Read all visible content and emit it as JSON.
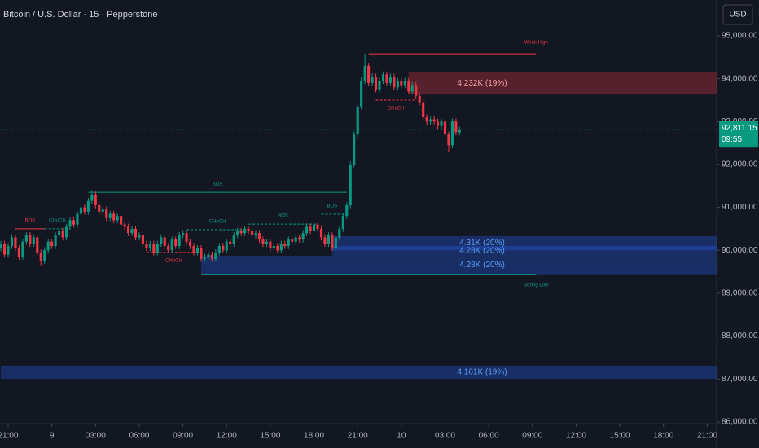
{
  "chart_data": {
    "type": "candlestick",
    "title": "Bitcoin / U.S. Dollar · 15 · Pepperstone",
    "currency": "USD",
    "up_color": "#089981",
    "down_color": "#f23645",
    "x": [
      -2,
      -1,
      0,
      1,
      2,
      3,
      4,
      5,
      6,
      7,
      8,
      9,
      10,
      11,
      12,
      13,
      14,
      15,
      16,
      17,
      18,
      19,
      20,
      21,
      22,
      23,
      24,
      25,
      26,
      27,
      28,
      29,
      30,
      31,
      32,
      33,
      34,
      35,
      36,
      37,
      38,
      39,
      40,
      41,
      42,
      43,
      44,
      45,
      46,
      47,
      48,
      49,
      50,
      51,
      52,
      53,
      54,
      55,
      56,
      57,
      58,
      59,
      60,
      61,
      62,
      63,
      64,
      65,
      66,
      67,
      68,
      69,
      70,
      71,
      72,
      73,
      74,
      75,
      76,
      77,
      78,
      79,
      80,
      81,
      82,
      83,
      84,
      85,
      86,
      87,
      88,
      89,
      90,
      91,
      92,
      93,
      94,
      95,
      96,
      97,
      98,
      99,
      100,
      101,
      102,
      103,
      104,
      105,
      106,
      107,
      108,
      109,
      110,
      111,
      112,
      113,
      114,
      115,
      116,
      117,
      118,
      119,
      120,
      121,
      122,
      123,
      124
    ],
    "open": [
      90050,
      90150,
      89900,
      90100,
      90300,
      90050,
      89850,
      90200,
      90350,
      90150,
      90300,
      89950,
      89750,
      90000,
      90200,
      90100,
      90350,
      90450,
      90300,
      90550,
      90700,
      90600,
      90850,
      91000,
      90900,
      91150,
      91300,
      91050,
      90900,
      90950,
      90750,
      90850,
      90700,
      90800,
      90600,
      90550,
      90400,
      90500,
      90300,
      90350,
      90150,
      90050,
      90150,
      89950,
      90150,
      90300,
      90100,
      90000,
      90250,
      90100,
      90350,
      90400,
      90200,
      90100,
      89950,
      90050,
      89800,
      89850,
      89900,
      89800,
      89950,
      90100,
      90000,
      90200,
      90150,
      90350,
      90450,
      90400,
      90500,
      90450,
      90350,
      90400,
      90250,
      90150,
      90200,
      90050,
      90100,
      90000,
      90150,
      90100,
      90250,
      90200,
      90300,
      90250,
      90400,
      90550,
      90450,
      90600,
      90500,
      90300,
      90150,
      90350,
      90050,
      90300,
      90500,
      90800,
      91050,
      92000,
      92700,
      93350,
      93950,
      94300,
      93900,
      94050,
      93750,
      93950,
      94100,
      93900,
      94050,
      93800,
      93950,
      93850,
      93950,
      93700,
      93850,
      93600,
      93450,
      93100,
      93000,
      93050,
      93000,
      92900,
      93000,
      92700,
      92450,
      93000,
      92750
    ],
    "high": [
      90220,
      90220,
      90170,
      90370,
      90370,
      90120,
      90270,
      90420,
      90420,
      90370,
      90370,
      90020,
      90070,
      90270,
      90270,
      90420,
      90520,
      90520,
      90620,
      90770,
      90770,
      90920,
      91070,
      91070,
      91220,
      91400,
      91370,
      91120,
      91020,
      91020,
      90920,
      90920,
      90870,
      90870,
      90670,
      90620,
      90570,
      90570,
      90420,
      90420,
      90220,
      90220,
      90220,
      90220,
      90370,
      90370,
      90170,
      90320,
      90320,
      90420,
      90470,
      90470,
      90270,
      90170,
      90120,
      90120,
      89920,
      89970,
      89970,
      90020,
      90170,
      90170,
      90270,
      90270,
      90420,
      90520,
      90520,
      90570,
      90570,
      90520,
      90470,
      90470,
      90320,
      90270,
      90270,
      90170,
      90170,
      90220,
      90220,
      90320,
      90320,
      90370,
      90370,
      90470,
      90620,
      90620,
      90670,
      90670,
      90570,
      90370,
      90420,
      90420,
      90370,
      90570,
      90870,
      91120,
      92070,
      92770,
      93420,
      94050,
      94580,
      94370,
      94120,
      94120,
      94020,
      94170,
      94170,
      94120,
      94120,
      94020,
      94020,
      94020,
      94020,
      93920,
      93920,
      93670,
      93520,
      93170,
      93120,
      93120,
      93070,
      93070,
      93070,
      92770,
      93070,
      93070,
      92880
    ],
    "low": [
      89980,
      89830,
      89830,
      90030,
      89980,
      89780,
      89780,
      90130,
      90080,
      90080,
      89880,
      89650,
      89680,
      89930,
      90030,
      90030,
      90280,
      90230,
      90230,
      90480,
      90530,
      90530,
      90780,
      90830,
      90830,
      91080,
      90980,
      90830,
      90830,
      90680,
      90680,
      90630,
      90630,
      90530,
      90480,
      90330,
      90330,
      90230,
      90230,
      90080,
      89980,
      89980,
      89880,
      89880,
      90080,
      90030,
      89930,
      89930,
      90030,
      90030,
      90280,
      90130,
      90030,
      89880,
      89880,
      89730,
      89730,
      89780,
      89730,
      89730,
      89880,
      89930,
      89930,
      90080,
      90080,
      90280,
      90330,
      90330,
      90380,
      90280,
      90280,
      90180,
      90080,
      90080,
      89980,
      89980,
      89930,
      89930,
      90030,
      90030,
      90130,
      90130,
      90180,
      90180,
      90330,
      90380,
      90380,
      90430,
      90230,
      90080,
      90080,
      89980,
      89980,
      90230,
      90430,
      90730,
      90980,
      91930,
      92630,
      93280,
      93880,
      93830,
      93830,
      93680,
      93680,
      93880,
      93830,
      93830,
      93730,
      93730,
      93780,
      93780,
      93630,
      93630,
      93530,
      93380,
      93030,
      92930,
      92930,
      92930,
      92830,
      92830,
      92630,
      92300,
      92380,
      92680,
      92680
    ],
    "close": [
      90150,
      89900,
      90100,
      90300,
      90050,
      89850,
      90200,
      90350,
      90150,
      90300,
      89950,
      89750,
      90000,
      90200,
      90100,
      90350,
      90450,
      90300,
      90550,
      90700,
      90600,
      90850,
      91000,
      90900,
      91150,
      91300,
      91050,
      90900,
      90950,
      90750,
      90850,
      90700,
      90800,
      90600,
      90550,
      90400,
      90500,
      90300,
      90350,
      90150,
      90050,
      90150,
      89950,
      90150,
      90300,
      90100,
      90000,
      90250,
      90100,
      90350,
      90400,
      90200,
      90100,
      89950,
      90050,
      89800,
      89850,
      89900,
      89800,
      89950,
      90100,
      90000,
      90200,
      90150,
      90350,
      90450,
      90400,
      90500,
      90450,
      90350,
      90400,
      90250,
      90150,
      90200,
      90050,
      90100,
      90000,
      90150,
      90100,
      90250,
      90200,
      90300,
      90250,
      90400,
      90550,
      90450,
      90600,
      90500,
      90300,
      90150,
      90350,
      90050,
      90300,
      90500,
      90800,
      91050,
      92000,
      92700,
      93350,
      93950,
      94300,
      93900,
      94050,
      93750,
      93950,
      94100,
      93900,
      94050,
      93800,
      93950,
      93850,
      93950,
      93700,
      93850,
      93600,
      93450,
      93100,
      93000,
      93050,
      93000,
      92900,
      93000,
      92700,
      92450,
      93000,
      92750,
      92811.15
    ],
    "xlim": [
      -2.24,
      194.6
    ],
    "xticks": [
      {
        "value": 0,
        "label": "21:00"
      },
      {
        "value": 12,
        "label": "9"
      },
      {
        "value": 24,
        "label": "03:00"
      },
      {
        "value": 36,
        "label": "06:00"
      },
      {
        "value": 48,
        "label": "09:00"
      },
      {
        "value": 60,
        "label": "12:00"
      },
      {
        "value": 72,
        "label": "15:00"
      },
      {
        "value": 84,
        "label": "18:00"
      },
      {
        "value": 96,
        "label": "21:00"
      },
      {
        "value": 108,
        "label": "10"
      },
      {
        "value": 120,
        "label": "03:00"
      },
      {
        "value": 132,
        "label": "06:00"
      },
      {
        "value": 144,
        "label": "09:00"
      },
      {
        "value": 156,
        "label": "12:00"
      },
      {
        "value": 168,
        "label": "15:00"
      },
      {
        "value": 180,
        "label": "18:00"
      },
      {
        "value": 192,
        "label": "21:00"
      }
    ],
    "ylim": [
      85960,
      95835
    ],
    "yticks": [
      {
        "value": 95000,
        "label": "95,000.00"
      },
      {
        "value": 94000,
        "label": "94,000.00"
      },
      {
        "value": 93000,
        "label": "93,000.00"
      },
      {
        "value": 92000,
        "label": "92,000.00"
      },
      {
        "value": 91000,
        "label": "91,000.00"
      },
      {
        "value": 90000,
        "label": "90,000.00"
      },
      {
        "value": 89000,
        "label": "89,000.00"
      },
      {
        "value": 88000,
        "label": "88,000.00"
      },
      {
        "value": 87000,
        "label": "87,000.00"
      },
      {
        "value": 86000,
        "label": "86,000.00"
      }
    ],
    "last_price": {
      "value": 92811.15,
      "label": "92,811.15"
    },
    "countdown": "09:55",
    "zones": [
      {
        "label": "4.232K (19%)",
        "top": 94160,
        "bottom": 93630,
        "start": 110,
        "color": "#f23645"
      },
      {
        "label": "4.31K (20%)",
        "top": 90330,
        "bottom": 90000,
        "start": 89,
        "color": "#2962ff"
      },
      {
        "label": "4.28K (20%)",
        "top": 90100,
        "bottom": 89870,
        "start": 89,
        "color": "#2962ff"
      },
      {
        "label": "4.28K (20%)",
        "top": 89870,
        "bottom": 89440,
        "start": 53,
        "color": "#2962ff"
      },
      {
        "label": "4.161K (19%)",
        "top": 87310,
        "bottom": 87000,
        "start": -2,
        "color": "#2962ff"
      }
    ],
    "structure_lines": [
      {
        "label": "Weak High",
        "price": 94580,
        "start": 99,
        "end": 145,
        "color": "#f23645",
        "dashed": false,
        "label_position": "above",
        "label_at": "end"
      },
      {
        "label": "Strong Low",
        "price": 89440,
        "start": 53,
        "end": 145,
        "color": "#089981",
        "dashed": false,
        "label_position": "below",
        "label_at": "end"
      },
      {
        "label": "BOS",
        "price": 91350,
        "start": 22,
        "end": 93,
        "color": "#089981",
        "dashed": false,
        "label_position": "above",
        "label_at": "middle"
      },
      {
        "label": "CHoCH",
        "price": 90500,
        "start": 10,
        "end": 17,
        "color": "#089981",
        "dashed": true,
        "label_position": "above",
        "label_at": "middle"
      },
      {
        "label": "BOS",
        "price": 90500,
        "start": 2,
        "end": 10,
        "color": "#f23645",
        "dashed": false,
        "label_position": "above",
        "label_at": "middle"
      },
      {
        "label": "CHoCH",
        "price": 90480,
        "start": 49,
        "end": 66,
        "color": "#089981",
        "dashed": true,
        "label_position": "above",
        "label_at": "middle"
      },
      {
        "label": "BOS",
        "price": 90610,
        "start": 66,
        "end": 85,
        "color": "#089981",
        "dashed": true,
        "label_position": "above",
        "label_at": "middle"
      },
      {
        "label": "BOS",
        "price": 90840,
        "start": 86,
        "end": 92,
        "color": "#089981",
        "dashed": true,
        "label_position": "above",
        "label_at": "middle"
      },
      {
        "label": "CHoCH",
        "price": 89950,
        "start": 38,
        "end": 53,
        "color": "#f23645",
        "dashed": true,
        "label_position": "below",
        "label_at": "middle"
      },
      {
        "label": "CHoCH",
        "price": 93500,
        "start": 101,
        "end": 112,
        "color": "#f23645",
        "dashed": true,
        "label_position": "below",
        "label_at": "middle"
      }
    ]
  }
}
